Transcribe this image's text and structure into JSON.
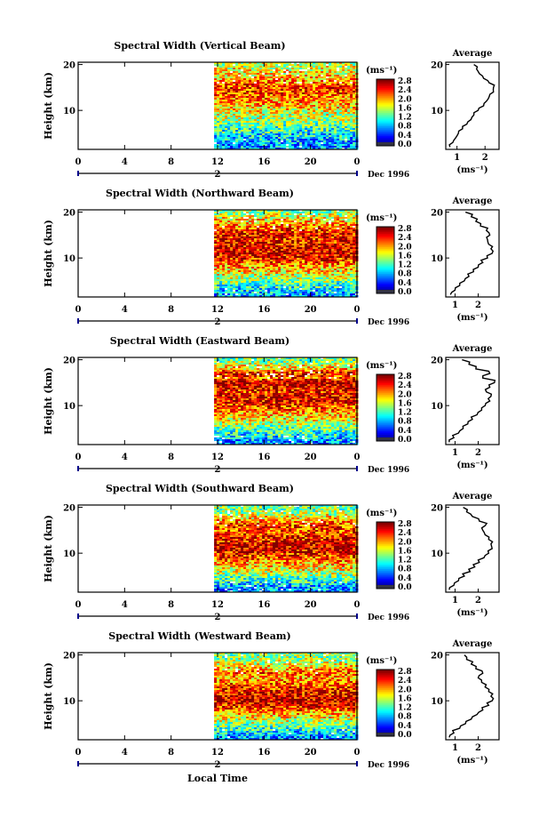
{
  "figure": {
    "x_axis_title": "Local Time",
    "date_label": "Dec 1996",
    "day_label": "2",
    "colorbar_unit": "(ms⁻¹)",
    "colorbar_ticks": [
      "0.0",
      "0.4",
      "0.8",
      "1.2",
      "1.6",
      "2.0",
      "2.4",
      "2.8"
    ],
    "avg_title": "Average",
    "avg_unit": "(ms⁻¹)"
  },
  "chart_data": [
    {
      "type": "heatmap",
      "title": "Spectral Width (Vertical Beam)",
      "xlabel": "Local Time",
      "ylabel": "Height (km)",
      "xticks": [
        "0",
        "4",
        "8",
        "12",
        "16",
        "20",
        "0"
      ],
      "yticks": [
        "10",
        "20"
      ],
      "xlim": [
        0,
        24
      ],
      "ylim": [
        1.5,
        20.5
      ],
      "data_start_hour": 11.7,
      "colorbar": {
        "label": "(ms⁻¹)",
        "range": [
          0,
          2.8
        ]
      },
      "profile": {
        "title": "Average",
        "xlabel": "(ms⁻¹)",
        "xticks": [
          "1",
          "2"
        ],
        "xlim": [
          0.6,
          2.5
        ],
        "heights": [
          2,
          3,
          4,
          5,
          6,
          7,
          8,
          9,
          10,
          11,
          12,
          13,
          14,
          15,
          16,
          17,
          18,
          19,
          20
        ],
        "values": [
          0.75,
          0.85,
          0.95,
          1.05,
          1.2,
          1.35,
          1.5,
          1.6,
          1.75,
          1.95,
          2.05,
          2.15,
          2.3,
          2.3,
          2.15,
          1.95,
          1.8,
          1.7,
          1.6
        ]
      }
    },
    {
      "type": "heatmap",
      "title": "Spectral Width (Northward Beam)",
      "xlabel": "Local Time",
      "ylabel": "Height (km)",
      "xticks": [
        "0",
        "4",
        "8",
        "12",
        "16",
        "20",
        "0"
      ],
      "yticks": [
        "10",
        "20"
      ],
      "xlim": [
        0,
        24
      ],
      "ylim": [
        1.5,
        20.5
      ],
      "data_start_hour": 11.7,
      "colorbar": {
        "label": "(ms⁻¹)",
        "range": [
          0,
          2.8
        ]
      },
      "profile": {
        "title": "Average",
        "xlabel": "(ms⁻¹)",
        "xticks": [
          "1",
          "2"
        ],
        "xlim": [
          0.6,
          2.9
        ],
        "heights": [
          2,
          3,
          4,
          5,
          6,
          7,
          8,
          9,
          10,
          11,
          12,
          13,
          14,
          15,
          16,
          17,
          18,
          19,
          20
        ],
        "values": [
          0.8,
          1.0,
          1.2,
          1.4,
          1.6,
          1.8,
          2.0,
          2.2,
          2.4,
          2.6,
          2.55,
          2.45,
          2.4,
          2.5,
          2.35,
          2.1,
          1.9,
          1.7,
          1.45
        ]
      }
    },
    {
      "type": "heatmap",
      "title": "Spectral Width (Eastward Beam)",
      "xlabel": "Local Time",
      "ylabel": "Height (km)",
      "xticks": [
        "0",
        "4",
        "8",
        "12",
        "16",
        "20",
        "0"
      ],
      "yticks": [
        "10",
        "20"
      ],
      "xlim": [
        0,
        24
      ],
      "ylim": [
        1.5,
        20.5
      ],
      "data_start_hour": 11.7,
      "colorbar": {
        "label": "(ms⁻¹)",
        "range": [
          0,
          2.8
        ]
      },
      "profile": {
        "title": "Average",
        "xlabel": "(ms⁻¹)",
        "xticks": [
          "1",
          "2"
        ],
        "xlim": [
          0.6,
          2.9
        ],
        "heights": [
          2,
          3,
          4,
          5,
          6,
          7,
          8,
          9,
          10,
          11,
          12,
          13,
          14,
          15,
          16,
          17,
          18,
          19,
          20
        ],
        "values": [
          0.75,
          0.95,
          1.15,
          1.35,
          1.55,
          1.75,
          1.95,
          2.15,
          2.3,
          2.5,
          2.55,
          2.35,
          2.5,
          2.7,
          2.2,
          2.5,
          1.9,
          1.6,
          1.3
        ]
      }
    },
    {
      "type": "heatmap",
      "title": "Spectral Width (Southward Beam)",
      "xlabel": "Local Time",
      "ylabel": "Height (km)",
      "xticks": [
        "0",
        "4",
        "8",
        "12",
        "16",
        "20",
        "0"
      ],
      "yticks": [
        "10",
        "20"
      ],
      "xlim": [
        0,
        24
      ],
      "ylim": [
        1.5,
        20.5
      ],
      "data_start_hour": 11.7,
      "colorbar": {
        "label": "(ms⁻¹)",
        "range": [
          0,
          2.8
        ]
      },
      "profile": {
        "title": "Average",
        "xlabel": "(ms⁻¹)",
        "xticks": [
          "1",
          "2"
        ],
        "xlim": [
          0.6,
          2.9
        ],
        "heights": [
          2,
          3,
          4,
          5,
          6,
          7,
          8,
          9,
          10,
          11,
          12,
          13,
          14,
          15,
          16,
          17,
          18,
          19,
          20
        ],
        "values": [
          0.75,
          0.95,
          1.15,
          1.4,
          1.65,
          1.85,
          2.05,
          2.25,
          2.45,
          2.6,
          2.55,
          2.45,
          2.3,
          2.2,
          2.3,
          2.05,
          1.75,
          1.5,
          1.35
        ]
      }
    },
    {
      "type": "heatmap",
      "title": "Spectral Width (Westward Beam)",
      "xlabel": "Local Time",
      "ylabel": "Height (km)",
      "xticks": [
        "0",
        "4",
        "8",
        "12",
        "16",
        "20",
        "0"
      ],
      "yticks": [
        "10",
        "20"
      ],
      "xlim": [
        0,
        24
      ],
      "ylim": [
        1.5,
        20.5
      ],
      "data_start_hour": 11.7,
      "colorbar": {
        "label": "(ms⁻¹)",
        "range": [
          0,
          2.8
        ]
      },
      "profile": {
        "title": "Average",
        "xlabel": "(ms⁻¹)",
        "xticks": [
          "1",
          "2"
        ],
        "xlim": [
          0.6,
          2.9
        ],
        "heights": [
          2,
          3,
          4,
          5,
          6,
          7,
          8,
          9,
          10,
          11,
          12,
          13,
          14,
          15,
          16,
          17,
          18,
          19,
          20
        ],
        "values": [
          0.75,
          0.95,
          1.2,
          1.45,
          1.7,
          1.95,
          2.2,
          2.45,
          2.6,
          2.55,
          2.45,
          2.3,
          2.15,
          2.0,
          2.2,
          1.9,
          1.7,
          1.5,
          1.4
        ]
      }
    }
  ]
}
